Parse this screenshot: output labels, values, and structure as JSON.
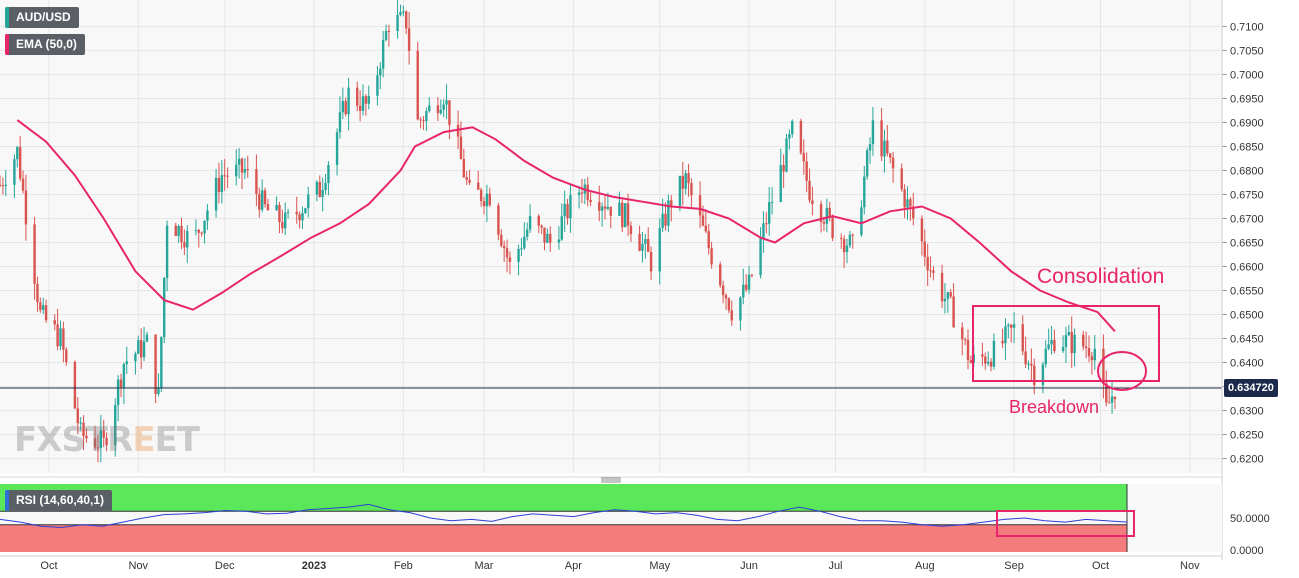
{
  "legend": {
    "symbol": "AUD/USD",
    "ema": "EMA (50,0)",
    "rsi": "RSI (14,60,40,1)"
  },
  "current_price": "0.634720",
  "watermark": {
    "a": "FXSTR",
    "b": "E",
    "c": "ET"
  },
  "annotations": {
    "consolidation": "Consolidation",
    "breakdown": "Breakdown"
  },
  "colors": {
    "up": "#26a69a",
    "down": "#d9534f",
    "ema": "#e8246a",
    "rsi_line": "#2d3fd6",
    "rsi_overbought": "#5ae85a",
    "rsi_oversold": "#f47c7c",
    "annotation": "#e8246a",
    "price_line": "#1b2a4a"
  },
  "chart_data": [
    {
      "type": "candlestick",
      "title": "AUD/USD",
      "x_ticks": [
        "Oct",
        "Nov",
        "Dec",
        "2023",
        "Feb",
        "Mar",
        "Apr",
        "May",
        "Jun",
        "Jul",
        "Aug",
        "Sep",
        "Oct",
        "Nov"
      ],
      "y_ticks": [
        "0.7100",
        "0.7050",
        "0.7000",
        "0.6950",
        "0.6900",
        "0.6850",
        "0.6800",
        "0.6750",
        "0.6700",
        "0.6650",
        "0.6600",
        "0.6550",
        "0.6500",
        "0.6450",
        "0.6400",
        "0.6350",
        "0.6300",
        "0.6250",
        "0.6200"
      ],
      "ylim": [
        0.617,
        0.7155
      ],
      "grid": true,
      "current_price": 0.63472,
      "series": [
        {
          "name": "EMA (50,0)",
          "points": [
            [
              "2022-09-20",
              0.6905
            ],
            [
              "2022-09-30",
              0.686
            ],
            [
              "2022-10-10",
              0.679
            ],
            [
              "2022-10-20",
              0.67
            ],
            [
              "2022-10-31",
              0.659
            ],
            [
              "2022-11-10",
              0.653
            ],
            [
              "2022-11-20",
              0.651
            ],
            [
              "2022-11-30",
              0.6545
            ],
            [
              "2022-12-10",
              0.6585
            ],
            [
              "2022-12-20",
              0.662
            ],
            [
              "2022-12-31",
              0.666
            ],
            [
              "2023-01-10",
              0.669
            ],
            [
              "2023-01-20",
              0.673
            ],
            [
              "2023-01-31",
              0.68
            ],
            [
              "2023-02-05",
              0.685
            ],
            [
              "2023-02-15",
              0.688
            ],
            [
              "2023-02-25",
              0.689
            ],
            [
              "2023-03-05",
              0.6865
            ],
            [
              "2023-03-15",
              0.682
            ],
            [
              "2023-03-25",
              0.6785
            ],
            [
              "2023-04-05",
              0.676
            ],
            [
              "2023-04-15",
              0.6745
            ],
            [
              "2023-04-25",
              0.6735
            ],
            [
              "2023-05-05",
              0.6725
            ],
            [
              "2023-05-15",
              0.672
            ],
            [
              "2023-05-25",
              0.67
            ],
            [
              "2023-06-05",
              0.666
            ],
            [
              "2023-06-10",
              0.665
            ],
            [
              "2023-06-20",
              0.669
            ],
            [
              "2023-06-30",
              0.6705
            ],
            [
              "2023-07-10",
              0.669
            ],
            [
              "2023-07-20",
              0.6715
            ],
            [
              "2023-07-31",
              0.6725
            ],
            [
              "2023-08-10",
              0.67
            ],
            [
              "2023-08-20",
              0.665
            ],
            [
              "2023-08-31",
              0.659
            ],
            [
              "2023-09-10",
              0.655
            ],
            [
              "2023-09-20",
              0.6525
            ],
            [
              "2023-09-30",
              0.6505
            ],
            [
              "2023-10-06",
              0.6465
            ]
          ]
        }
      ],
      "candles_summary": "daily OHLC candles from 2022-09 to 2023-10-06; highs near 0.7150 in early Feb 2023, lows near 0.6170 in mid-Oct 2022; last close 0.63472",
      "consolidation_box": {
        "from": "2023-08-20",
        "to": "2023-10-08",
        "low": 0.6365,
        "high": 0.652
      }
    },
    {
      "type": "line",
      "title": "RSI (14,60,40,1)",
      "y_ticks": [
        "50.0000",
        "0.0000"
      ],
      "ylim": [
        0,
        100
      ],
      "overbought": 60,
      "oversold": 40,
      "series": [
        {
          "name": "RSI (14,60,40,1)",
          "values": [
            48,
            44,
            38,
            36,
            40,
            38,
            44,
            50,
            55,
            56,
            58,
            61,
            60,
            56,
            57,
            62,
            64,
            66,
            70,
            62,
            58,
            50,
            46,
            48,
            45,
            52,
            56,
            54,
            52,
            58,
            62,
            60,
            56,
            58,
            54,
            48,
            46,
            52,
            60,
            66,
            60,
            52,
            46,
            46,
            44,
            40,
            38,
            40,
            44,
            48,
            50,
            46,
            44,
            48,
            46,
            44
          ]
        }
      ]
    }
  ]
}
